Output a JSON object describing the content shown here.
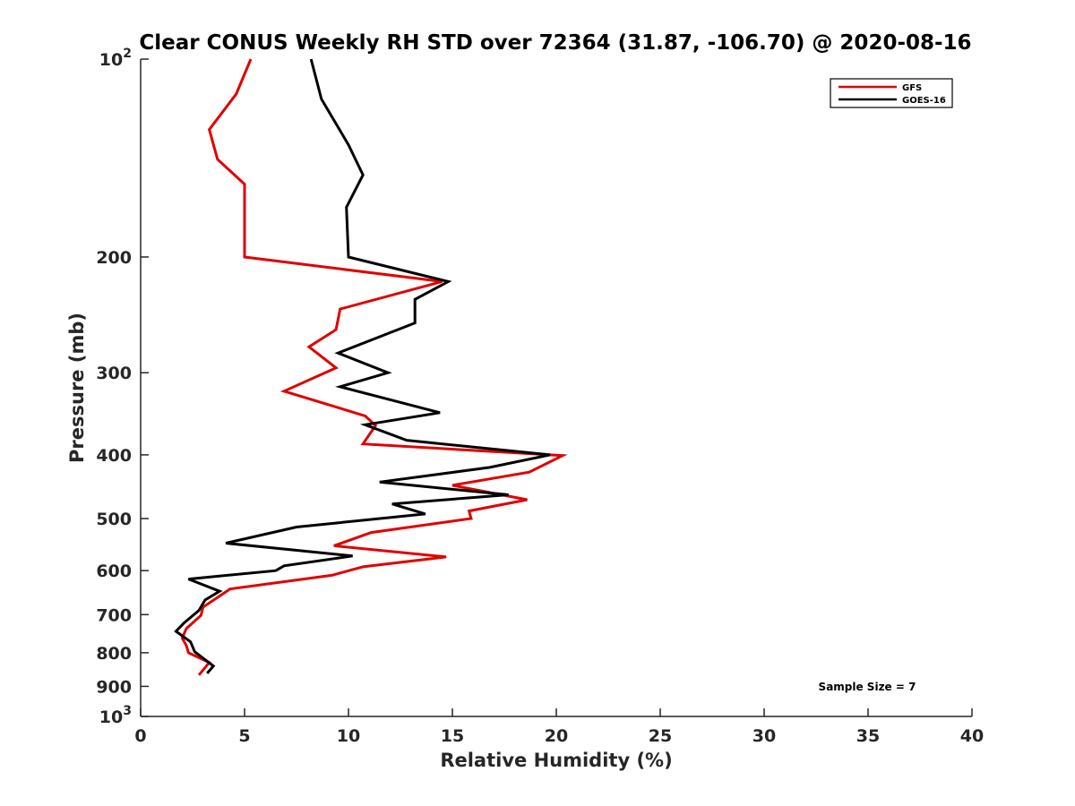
{
  "chart_data": {
    "type": "line",
    "title": "Clear CONUS Weekly RH STD over 72364 (31.87, -106.70) @ 2020-08-16",
    "xlabel": "Relative Humidity (%)",
    "ylabel": "Pressure (mb)",
    "xlim": [
      0,
      40
    ],
    "ylim": [
      100,
      1000
    ],
    "y_scale": "log",
    "y_reversed": true,
    "x_ticks": [
      0,
      5,
      10,
      15,
      20,
      25,
      30,
      35,
      40
    ],
    "x_tick_labels": [
      "0",
      "5",
      "10",
      "15",
      "20",
      "25",
      "30",
      "35",
      "40"
    ],
    "y_ticks": [
      100,
      200,
      300,
      400,
      500,
      600,
      700,
      800,
      900,
      1000
    ],
    "y_tick_labels": [
      {
        "base": "10",
        "exp": "2"
      },
      {
        "base": "200",
        "exp": ""
      },
      {
        "base": "300",
        "exp": ""
      },
      {
        "base": "400",
        "exp": ""
      },
      {
        "base": "500",
        "exp": ""
      },
      {
        "base": "600",
        "exp": ""
      },
      {
        "base": "700",
        "exp": ""
      },
      {
        "base": "800",
        "exp": ""
      },
      {
        "base": "900",
        "exp": ""
      },
      {
        "base": "10",
        "exp": "3"
      }
    ],
    "grid": false,
    "legend_position": "top-right",
    "annotation": "Sample Size = 7",
    "series": [
      {
        "name": "GFS",
        "color": "#e00000",
        "points": [
          [
            5.3,
            100
          ],
          [
            4.6,
            113
          ],
          [
            3.3,
            128
          ],
          [
            3.7,
            142
          ],
          [
            5.0,
            155
          ],
          [
            5.0,
            200
          ],
          [
            14.5,
            218
          ],
          [
            9.6,
            240
          ],
          [
            9.4,
            258
          ],
          [
            8.1,
            274
          ],
          [
            9.4,
            295
          ],
          [
            6.9,
            320
          ],
          [
            10.8,
            349
          ],
          [
            11.3,
            361
          ],
          [
            10.7,
            385
          ],
          [
            20.3,
            401
          ],
          [
            18.7,
            425
          ],
          [
            15.0,
            445
          ],
          [
            18.6,
            468
          ],
          [
            15.8,
            487
          ],
          [
            15.9,
            500
          ],
          [
            11.1,
            525
          ],
          [
            9.3,
            550
          ],
          [
            14.7,
            572
          ],
          [
            10.7,
            592
          ],
          [
            9.2,
            610
          ],
          [
            4.3,
            640
          ],
          [
            3.0,
            682
          ],
          [
            2.9,
            702
          ],
          [
            2.2,
            735
          ],
          [
            2.0,
            760
          ],
          [
            2.2,
            780
          ],
          [
            2.3,
            800
          ],
          [
            3.3,
            828
          ],
          [
            2.8,
            865
          ]
        ]
      },
      {
        "name": "GOES-16",
        "color": "#000000",
        "points": [
          [
            8.2,
            100
          ],
          [
            8.7,
            115
          ],
          [
            10.0,
            135
          ],
          [
            10.7,
            150
          ],
          [
            9.9,
            168
          ],
          [
            10.0,
            200
          ],
          [
            14.8,
            218
          ],
          [
            13.2,
            232
          ],
          [
            13.2,
            252
          ],
          [
            9.5,
            280
          ],
          [
            11.9,
            300
          ],
          [
            9.6,
            315
          ],
          [
            14.4,
            345
          ],
          [
            10.8,
            360
          ],
          [
            12.8,
            380
          ],
          [
            19.7,
            400
          ],
          [
            16.8,
            418
          ],
          [
            11.5,
            440
          ],
          [
            17.7,
            460
          ],
          [
            12.1,
            475
          ],
          [
            13.7,
            492
          ],
          [
            7.5,
            515
          ],
          [
            4.1,
            545
          ],
          [
            10.2,
            570
          ],
          [
            6.9,
            590
          ],
          [
            6.5,
            600
          ],
          [
            2.3,
            618
          ],
          [
            3.8,
            645
          ],
          [
            3.1,
            665
          ],
          [
            2.8,
            690
          ],
          [
            2.1,
            720
          ],
          [
            1.7,
            742
          ],
          [
            2.4,
            770
          ],
          [
            2.6,
            797
          ],
          [
            3.5,
            838
          ],
          [
            3.2,
            860
          ]
        ]
      }
    ]
  }
}
